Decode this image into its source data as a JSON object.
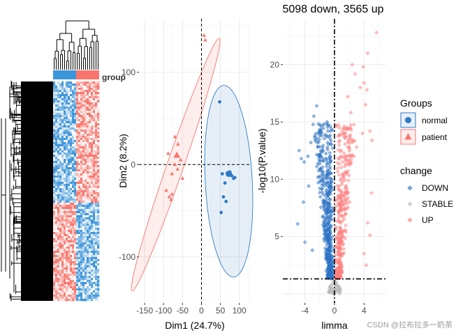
{
  "colors": {
    "normal": "#2F7AC6",
    "patient": "#F8766D",
    "up": "#FF7F7F",
    "down": "#2E73C4",
    "stable": "#BBBBBB",
    "heat_high": "#F8766D",
    "heat_low": "#3E96DA",
    "grid": "#EBEBEB"
  },
  "heatmap": {
    "annotation_label": "group",
    "groups": [
      "normal",
      "patient"
    ]
  },
  "watermark": "CSDN @拉布拉多一奶茶",
  "chart_data": [
    {
      "type": "scatter",
      "name": "pca",
      "xlabel": "Dim1 (24.7%)",
      "ylabel": "Dim2 (8.2%)",
      "xlim": [
        -165,
        130
      ],
      "ylim": [
        -150,
        158
      ],
      "x_ticks": [
        -150,
        -100,
        -50,
        0,
        50,
        100
      ],
      "x_tick_labels": [
        "-150",
        "-100",
        "-50",
        "0",
        "50",
        "100"
      ],
      "y_ticks": [
        -100,
        0,
        100
      ],
      "y_tick_labels": [
        "-100",
        "0",
        "100"
      ],
      "grid": true,
      "legend": {
        "title": "Groups",
        "position": "right",
        "items": [
          {
            "label": "normal",
            "shape": "circle",
            "color": "#2F7AC6"
          },
          {
            "label": "patient",
            "shape": "triangle",
            "color": "#F8766D"
          }
        ]
      },
      "series": [
        {
          "name": "normal",
          "shape": "circle",
          "points": [
            [
              70,
              -10
            ],
            [
              55,
              -10
            ],
            [
              62,
              -20
            ],
            [
              80,
              -12
            ],
            [
              88,
              -14
            ],
            [
              58,
              -35
            ],
            [
              65,
              -40
            ],
            [
              52,
              -52
            ],
            [
              48,
              68
            ],
            [
              72,
              -10
            ],
            [
              75,
              -8
            ],
            [
              85,
              -15
            ]
          ],
          "centroid": [
            72,
            -10
          ]
        },
        {
          "name": "patient",
          "shape": "triangle",
          "points": [
            [
              -55,
              5
            ],
            [
              -88,
              12
            ],
            [
              -70,
              0
            ],
            [
              -63,
              -5
            ],
            [
              -78,
              -10
            ],
            [
              -93,
              -28
            ],
            [
              -78,
              -32
            ],
            [
              -85,
              -35
            ],
            [
              -80,
              -38
            ],
            [
              -62,
              22
            ],
            [
              -70,
              30
            ],
            [
              -50,
              -15
            ],
            [
              7,
              140
            ],
            [
              10,
              135
            ]
          ],
          "centroid": [
            -65,
            10
          ]
        }
      ],
      "ellipses": [
        {
          "group": "normal",
          "center": [
            72,
            -18
          ],
          "rx": 62,
          "ry": 104,
          "rotate": -3
        },
        {
          "group": "patient",
          "center": [
            -68,
            0
          ],
          "rx": 22,
          "ry": 145,
          "rotate": 19
        }
      ],
      "ref_lines": {
        "x": 0,
        "y": 0
      }
    },
    {
      "type": "scatter",
      "name": "volcano",
      "title": "5098 down, 3565 up",
      "xlabel": "limma",
      "ylabel": "-log10(P.value)",
      "xlim": [
        -7,
        7
      ],
      "ylim": [
        -0.8,
        24
      ],
      "x_ticks": [
        -4,
        0,
        4
      ],
      "x_tick_labels": [
        "-4",
        "0",
        "4"
      ],
      "y_ticks": [
        5,
        10,
        15,
        20
      ],
      "y_tick_labels": [
        "5",
        "10",
        "15",
        "20"
      ],
      "grid": true,
      "thresholds": {
        "x": 0,
        "y": 1.3
      },
      "legend": {
        "title": "change",
        "position": "right",
        "items": [
          {
            "label": "DOWN",
            "color": "#2E73C4"
          },
          {
            "label": "STABLE",
            "color": "#BBBBBB"
          },
          {
            "label": "UP",
            "color": "#FF7F7F"
          }
        ]
      },
      "series": [
        {
          "name": "DOWN",
          "points": [
            [
              -4.8,
              12.5
            ],
            [
              -4.5,
              11.8
            ],
            [
              -4.1,
              11.5
            ],
            [
              -3.6,
              12.0
            ],
            [
              -3.2,
              13.2
            ],
            [
              -2.4,
              16.4
            ],
            [
              -2.8,
              15.5
            ],
            [
              -1.0,
              15.0
            ],
            [
              -0.9,
              14.2
            ],
            [
              -3.5,
              9.4
            ],
            [
              -5.0,
              6.1
            ],
            [
              -4.2,
              8.0
            ],
            [
              -4.0,
              4.5
            ],
            [
              -3.0,
              3.8
            ]
          ]
        },
        {
          "name": "UP",
          "points": [
            [
              5.7,
              22.8
            ],
            [
              4.5,
              21.0
            ],
            [
              3.9,
              19.8
            ],
            [
              2.8,
              19.2
            ],
            [
              3.5,
              18.0
            ],
            [
              4.0,
              18.4
            ],
            [
              4.4,
              17.8
            ],
            [
              2.4,
              20.0
            ],
            [
              4.8,
              14.2
            ],
            [
              5.1,
              13.4
            ],
            [
              4.2,
              16.5
            ],
            [
              3.8,
              14.0
            ],
            [
              3.0,
              12.8
            ],
            [
              1.8,
              17.2
            ],
            [
              2.2,
              15.8
            ],
            [
              5.0,
              8.8
            ],
            [
              4.5,
              6.2
            ],
            [
              4.0,
              3.5
            ],
            [
              4.3,
              2.5
            ],
            [
              4.8,
              5.1
            ]
          ]
        },
        {
          "name": "STABLE",
          "points": []
        }
      ]
    }
  ]
}
